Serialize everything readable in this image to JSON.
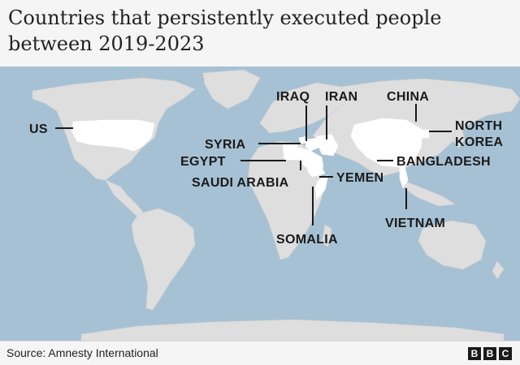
{
  "title": "Countries that persistently executed people between 2019-2023",
  "source": "Source: Amnesty International",
  "logo": [
    "B",
    "B",
    "C"
  ],
  "colors": {
    "ocean": "#a7c1d4",
    "land": "#dedede",
    "highlight": "#ffffff",
    "text": "#1a1a1a"
  },
  "countries": {
    "us": "US",
    "syria": "SYRIA",
    "egypt": "EGYPT",
    "saudi_arabia": "SAUDI ARABIA",
    "iraq": "IRAQ",
    "iran": "IRAN",
    "yemen": "YEMEN",
    "somalia": "SOMALIA",
    "china": "CHINA",
    "north_korea_1": "NORTH",
    "north_korea_2": "KOREA",
    "bangladesh": "BANGLADESH",
    "vietnam": "VIETNAM"
  }
}
